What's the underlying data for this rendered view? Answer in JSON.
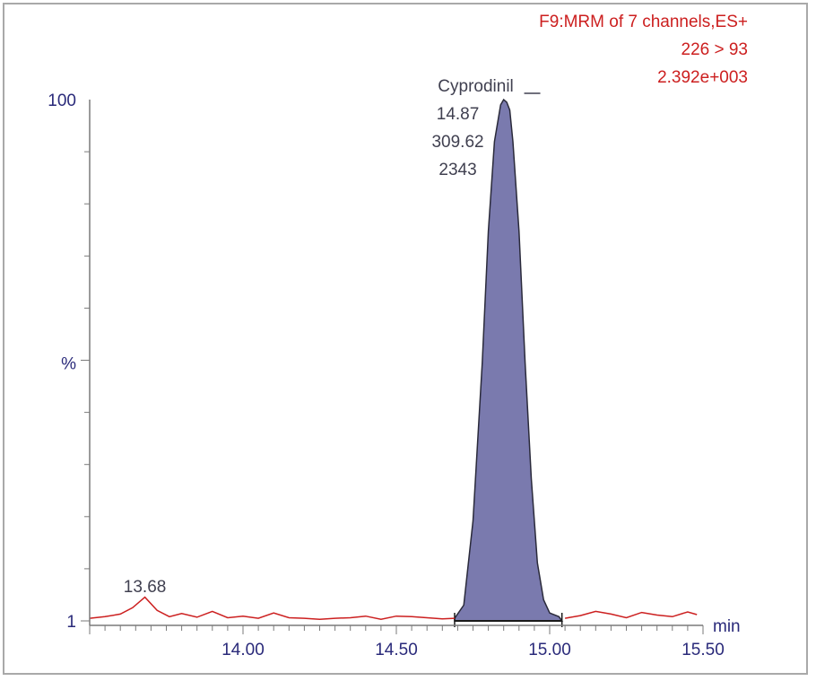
{
  "chart_data": {
    "type": "line",
    "header": {
      "line1": "F9:MRM of 7 channels,ES+",
      "line2": "226 > 93",
      "line3": "2.392e+003"
    },
    "xlabel": "min",
    "ylabel": "%",
    "xlim": [
      13.5,
      15.5
    ],
    "ylim": [
      1,
      100
    ],
    "x_ticks": [
      "14.00",
      "14.50",
      "15.00",
      "15.50"
    ],
    "x_tick_values": [
      14.0,
      14.5,
      15.0,
      15.5
    ],
    "y_ticks": [
      "100",
      "%",
      "1"
    ],
    "y_tick_values": [
      100,
      50,
      1
    ],
    "series": [
      {
        "x": [
          13.5,
          13.55,
          13.6,
          13.64,
          13.68,
          13.72,
          13.76,
          13.8,
          13.85,
          13.9,
          13.95,
          14.0,
          14.05,
          14.1,
          14.15,
          14.2,
          14.25,
          14.3,
          14.35,
          14.4,
          14.45,
          14.5,
          14.55,
          14.6,
          14.65,
          14.69,
          14.72,
          14.75,
          14.78,
          14.8,
          14.82,
          14.84,
          14.85,
          14.86,
          14.87,
          14.88,
          14.9,
          14.92,
          14.94,
          14.96,
          14.98,
          15.0,
          15.03,
          15.05,
          15.1,
          15.15,
          15.2,
          15.25,
          15.3,
          15.35,
          15.4,
          15.45,
          15.48
        ],
        "values": [
          1.5,
          1.8,
          2.3,
          3.5,
          5.5,
          3.0,
          1.8,
          2.4,
          1.7,
          2.8,
          1.6,
          1.9,
          1.5,
          2.5,
          1.6,
          1.5,
          1.3,
          1.5,
          1.6,
          1.9,
          1.3,
          1.9,
          1.8,
          1.6,
          1.4,
          1.5,
          4.0,
          20.0,
          50.0,
          75.0,
          92.0,
          99.0,
          100.0,
          99.5,
          98.0,
          92.0,
          75.0,
          50.0,
          28.0,
          12.0,
          5.0,
          2.5,
          1.8,
          1.5,
          2.0,
          2.8,
          2.3,
          1.6,
          2.6,
          2.1,
          1.8,
          2.7,
          2.2
        ],
        "color": "#cc1f1f"
      }
    ],
    "peaks": [
      {
        "name": "Cyprodinil",
        "rt": "14.87",
        "height": "309.62",
        "area": "2343",
        "start": 14.69,
        "end": 15.04,
        "fill": "#7a7aae"
      },
      {
        "rt": "13.68",
        "x": 13.68
      }
    ],
    "colors": {
      "axis": "#7a7a7a",
      "axis_label": "#2a2a7a",
      "header": "#cc1f1f",
      "peak_label": "#404050"
    }
  }
}
